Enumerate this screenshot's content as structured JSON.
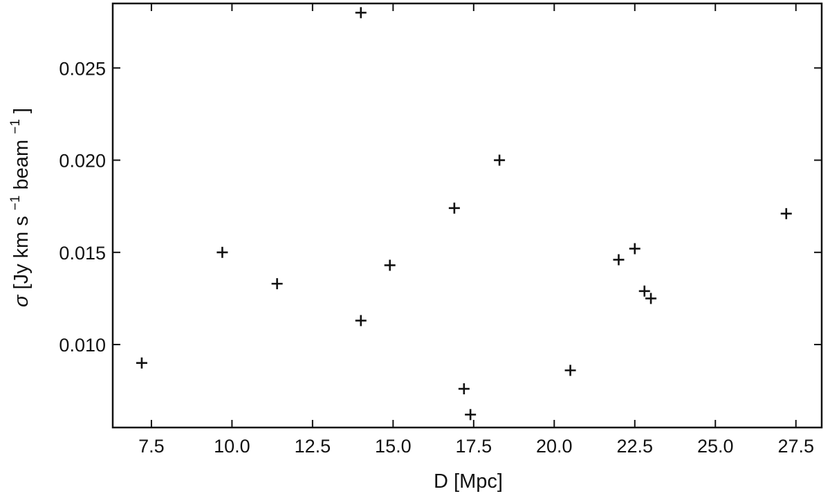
{
  "chart_data": {
    "type": "scatter",
    "marker": "plus",
    "xlabel": "D [Mpc]",
    "ylabel_parts": {
      "sigma": "σ",
      "unit_a": " [Jy km s",
      "exp_a": "−1",
      "unit_b": " beam",
      "exp_b": "−1",
      "close": "]"
    },
    "xlim": [
      6.3,
      28.3
    ],
    "ylim": [
      0.0055,
      0.0285
    ],
    "xticks": [
      7.5,
      10.0,
      12.5,
      15.0,
      17.5,
      20.0,
      22.5,
      25.0,
      27.5
    ],
    "xtick_labels": [
      "7.5",
      "10.0",
      "12.5",
      "15.0",
      "17.5",
      "20.0",
      "22.5",
      "25.0",
      "27.5"
    ],
    "yticks": [
      0.01,
      0.015,
      0.02,
      0.025
    ],
    "ytick_labels": [
      "0.010",
      "0.015",
      "0.020",
      "0.025"
    ],
    "grid": false,
    "points": [
      {
        "x": 7.2,
        "y": 0.009
      },
      {
        "x": 9.7,
        "y": 0.015
      },
      {
        "x": 11.4,
        "y": 0.0133
      },
      {
        "x": 14.0,
        "y": 0.028
      },
      {
        "x": 14.0,
        "y": 0.0113
      },
      {
        "x": 14.9,
        "y": 0.0143
      },
      {
        "x": 16.9,
        "y": 0.0174
      },
      {
        "x": 17.2,
        "y": 0.0076
      },
      {
        "x": 17.4,
        "y": 0.0062
      },
      {
        "x": 18.3,
        "y": 0.02
      },
      {
        "x": 20.5,
        "y": 0.0086
      },
      {
        "x": 22.0,
        "y": 0.0146
      },
      {
        "x": 22.5,
        "y": 0.0152
      },
      {
        "x": 22.8,
        "y": 0.0129
      },
      {
        "x": 23.0,
        "y": 0.0125
      },
      {
        "x": 27.2,
        "y": 0.0171
      }
    ]
  }
}
